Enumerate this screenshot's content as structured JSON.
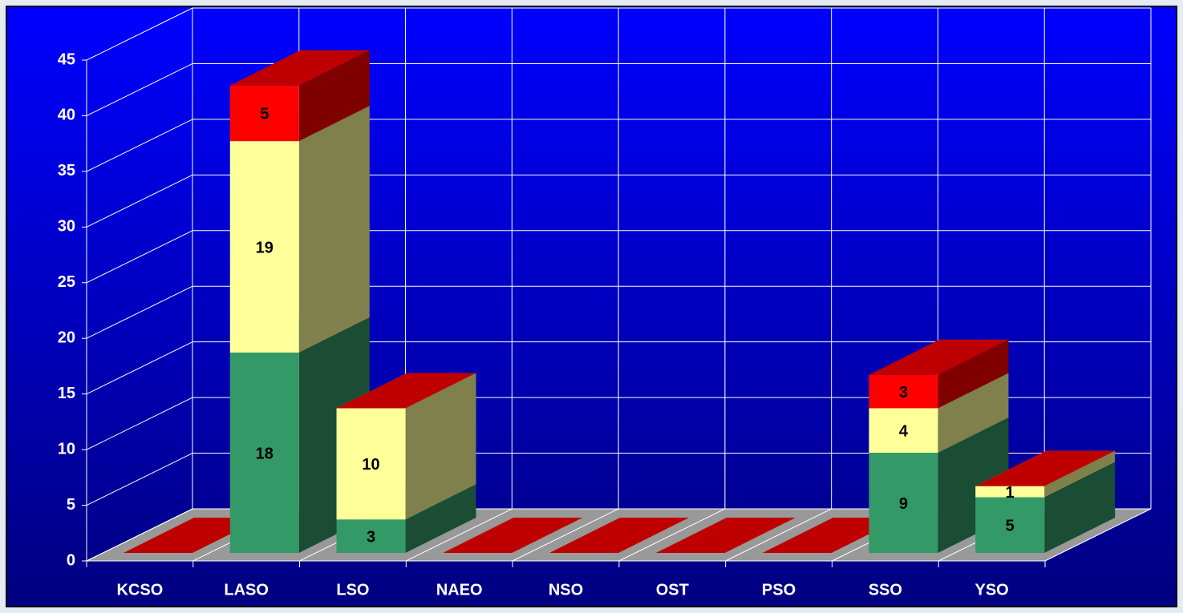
{
  "chart_data": {
    "type": "bar3d_stacked",
    "categories": [
      "KCSO",
      "LASO",
      "LSO",
      "NAEO",
      "NSO",
      "OST",
      "PSO",
      "SSO",
      "YSO"
    ],
    "series": [
      {
        "color": "#339966",
        "values": [
          0,
          18,
          3,
          0,
          0,
          0,
          0,
          9,
          5
        ]
      },
      {
        "color": "#ffff99",
        "values": [
          0,
          19,
          10,
          0,
          0,
          0,
          0,
          4,
          1
        ]
      },
      {
        "color": "#ff0000",
        "values": [
          0,
          5,
          0,
          0,
          0,
          0,
          0,
          3,
          0
        ]
      }
    ],
    "ylim": [
      0,
      45
    ],
    "yticks": [
      0,
      5,
      10,
      15,
      20,
      25,
      30,
      35,
      40,
      45
    ],
    "grid": true
  }
}
